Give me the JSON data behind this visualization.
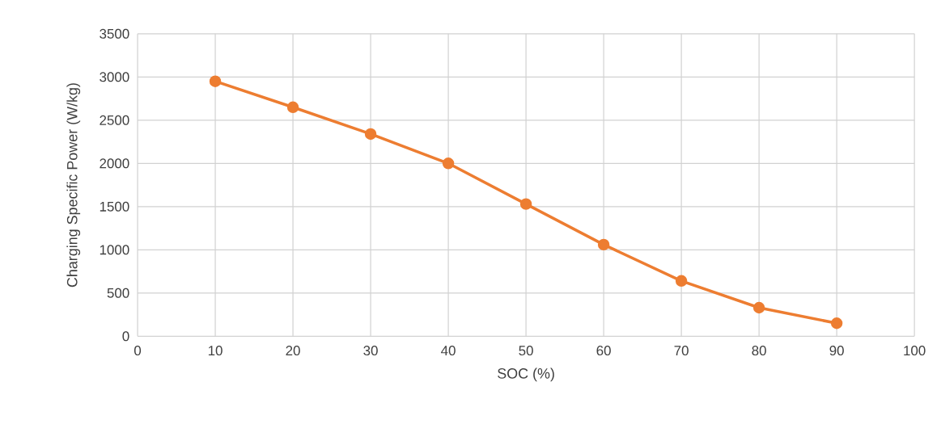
{
  "chart_data": {
    "type": "line",
    "xlabel": "SOC (%)",
    "ylabel": "Charging Specific Power (W/kg)",
    "x": [
      10,
      20,
      30,
      40,
      50,
      60,
      70,
      80,
      90
    ],
    "series": [
      {
        "color": "#ed7d31",
        "values": [
          2950,
          2650,
          2340,
          2000,
          1530,
          1060,
          640,
          330,
          150
        ]
      }
    ],
    "xlim": [
      0,
      100
    ],
    "xticks": [
      0,
      10,
      20,
      30,
      40,
      50,
      60,
      70,
      80,
      90,
      100
    ],
    "ylim": [
      0,
      3500
    ],
    "yticks": [
      0,
      500,
      1000,
      1500,
      2000,
      2500,
      3000,
      3500
    ],
    "grid": true,
    "marker": "circle",
    "line_style": "solid"
  }
}
